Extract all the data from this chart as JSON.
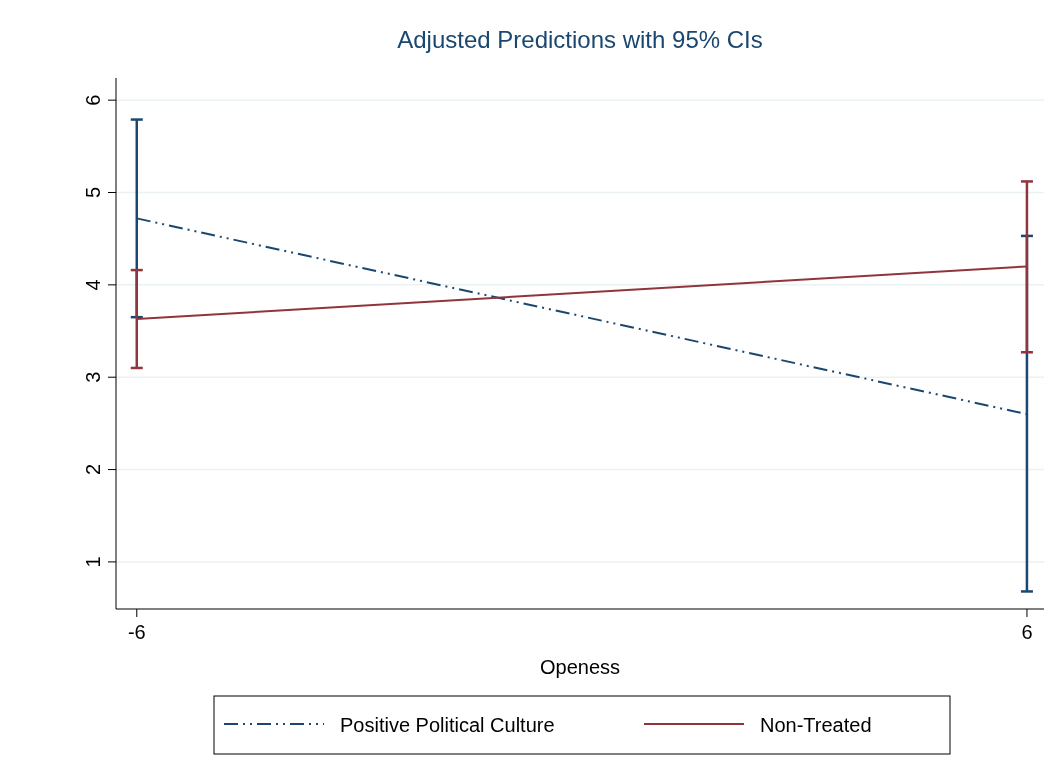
{
  "chart_data": {
    "type": "line",
    "title": "Adjusted Predictions with 95% CIs",
    "xlabel": "Openess",
    "x": [
      -6,
      6
    ],
    "series": [
      {
        "name": "Positive Political Culture",
        "color": "#1a476f",
        "values": [
          4.72,
          2.6
        ],
        "errors": [
          [
            3.65,
            5.79
          ],
          [
            0.68,
            4.53
          ]
        ],
        "line_style": "dashdot"
      },
      {
        "name": "Non-Treated",
        "color": "#90353b",
        "values": [
          3.63,
          4.2
        ],
        "errors": [
          [
            3.1,
            4.16
          ],
          [
            3.27,
            5.12
          ]
        ],
        "line_style": "solid"
      }
    ],
    "xlim": [
      -6.28,
      6.23
    ],
    "xticks": [
      -6,
      6
    ],
    "ylim": [
      0.49,
      6.24
    ],
    "yticks": [
      1,
      2,
      3,
      4,
      5,
      6
    ],
    "grid": "y",
    "legend": "bottom",
    "marker": "none"
  }
}
